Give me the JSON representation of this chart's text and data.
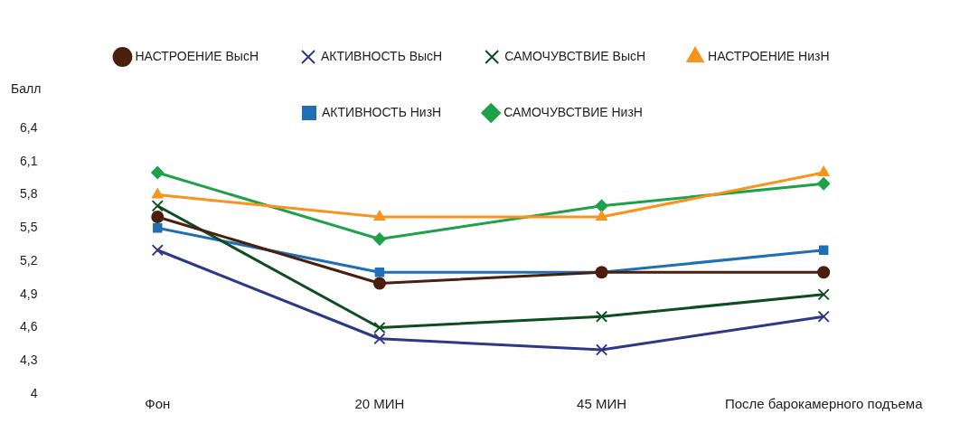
{
  "chart_data": {
    "type": "line",
    "ylabel": "Балл",
    "categories": [
      "Фон",
      "20 МИН",
      "45 МИН",
      "После барокамерного подъема"
    ],
    "ylim": [
      4,
      6.4
    ],
    "yticks": [
      4,
      {
        "value": 4.3,
        "label": "4,3"
      },
      {
        "value": 4.6,
        "label": "4,6"
      },
      {
        "value": 4.9,
        "label": "4,9"
      },
      {
        "value": 5.2,
        "label": "5,2"
      },
      {
        "value": 5.5,
        "label": "5,5"
      },
      {
        "value": 5.8,
        "label": "5,8"
      },
      {
        "value": 6.1,
        "label": "6,1"
      },
      {
        "value": 6.4,
        "label": "6,4"
      }
    ],
    "grid": false,
    "legend": "top",
    "line_style": "solid",
    "series": [
      {
        "name": "САМОЧУВСТВИЕ НизН",
        "color": "#1fa04a",
        "marker": "diamond",
        "values": [
          6.0,
          5.4,
          5.7,
          5.9
        ]
      },
      {
        "name": "АКТИВНОСТЬ НизН",
        "color": "#1f6fb7",
        "marker": "square",
        "values": [
          5.5,
          5.1,
          5.1,
          5.3
        ]
      },
      {
        "name": "НАСТРОЕНИЕ НизН",
        "color": "#f7941d",
        "marker": "triangle",
        "values": [
          5.8,
          5.6,
          5.6,
          6.0
        ]
      },
      {
        "name": "САМОЧУВСТВИЕ ВысН",
        "color": "#0e4d22",
        "marker": "cross",
        "values": [
          5.7,
          4.6,
          4.7,
          4.9
        ]
      },
      {
        "name": "АКТИВНОСТЬ ВысН",
        "color": "#2f3887",
        "marker": "cross",
        "values": [
          5.3,
          4.5,
          4.4,
          4.7
        ]
      },
      {
        "name": "НАСТРОЕНИЕ ВысН",
        "color": "#4a1f0e",
        "marker": "circle",
        "values": [
          5.6,
          5.0,
          5.1,
          5.1
        ]
      }
    ]
  }
}
